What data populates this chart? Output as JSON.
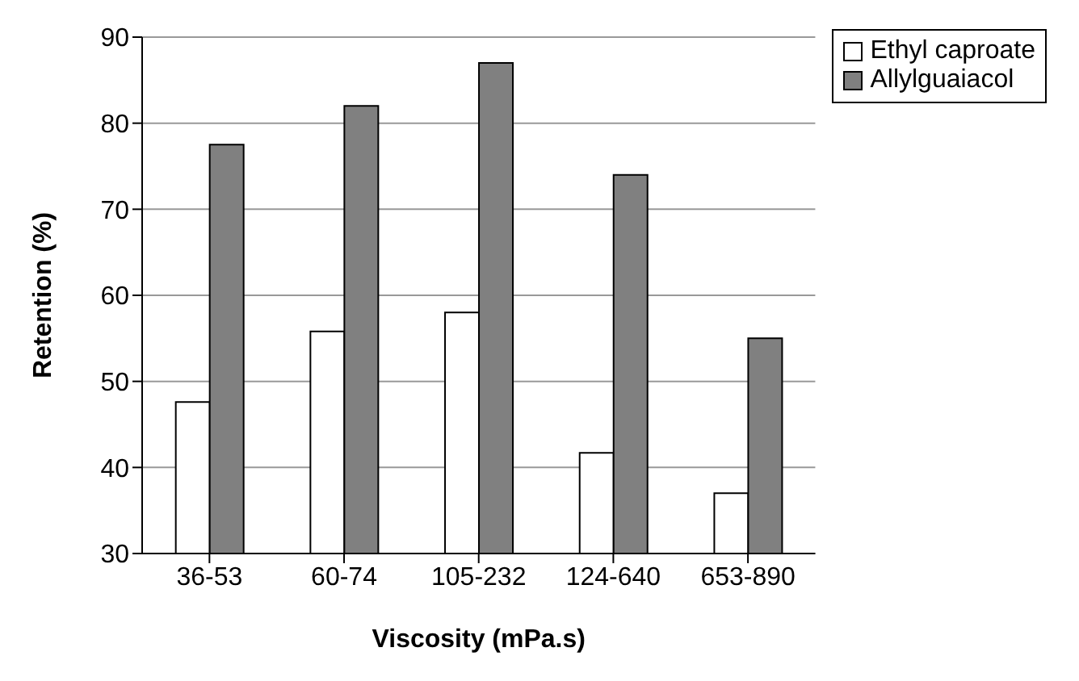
{
  "chart_data": {
    "type": "bar",
    "xlabel": "Viscosity   (mPa.s)",
    "ylabel": "Retention (%)",
    "categories": [
      "36-53",
      "60-74",
      "105-232",
      "124-640",
      "653-890"
    ],
    "series": [
      {
        "name": "Ethyl caproate",
        "color": "#ffffff",
        "values": [
          47.6,
          55.8,
          58,
          41.7,
          37
        ]
      },
      {
        "name": "Allylguaiacol",
        "color": "#808080",
        "values": [
          77.5,
          82,
          87,
          74,
          55
        ]
      }
    ],
    "ylim": [
      30,
      90
    ],
    "yticks": [
      30,
      40,
      50,
      60,
      70,
      80,
      90
    ],
    "grid": "y",
    "legend": "top right"
  }
}
